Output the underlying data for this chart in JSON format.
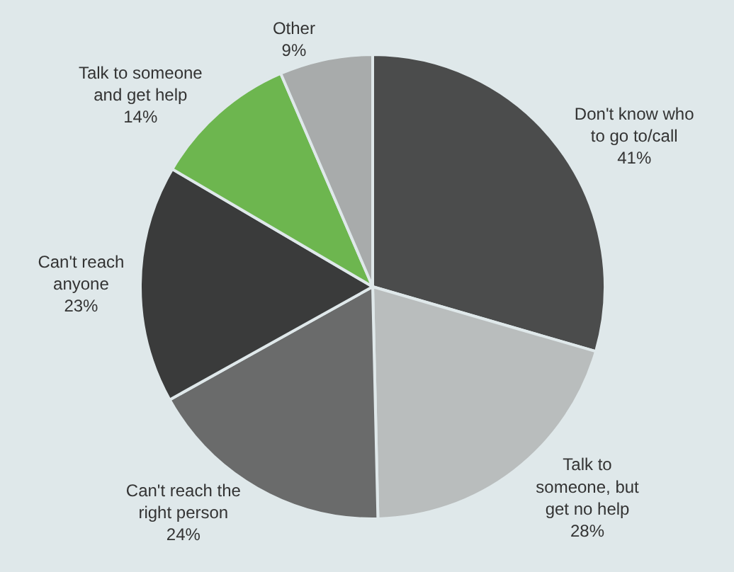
{
  "chart_data": {
    "type": "pie",
    "categories": [
      "Don't know who to go to/call",
      "Talk to someone, but get no help",
      "Can't reach the right person",
      "Can't reach anyone",
      "Talk to someone and get help",
      "Other"
    ],
    "values": [
      41,
      28,
      24,
      23,
      14,
      9
    ],
    "colors": [
      "#4b4c4c",
      "#b9bdbd",
      "#6a6b6b",
      "#3a3b3b",
      "#6db64f",
      "#a8abab"
    ],
    "value_labels": [
      "41%",
      "28%",
      "24%",
      "23%",
      "14%",
      "9%"
    ],
    "legend": false
  }
}
